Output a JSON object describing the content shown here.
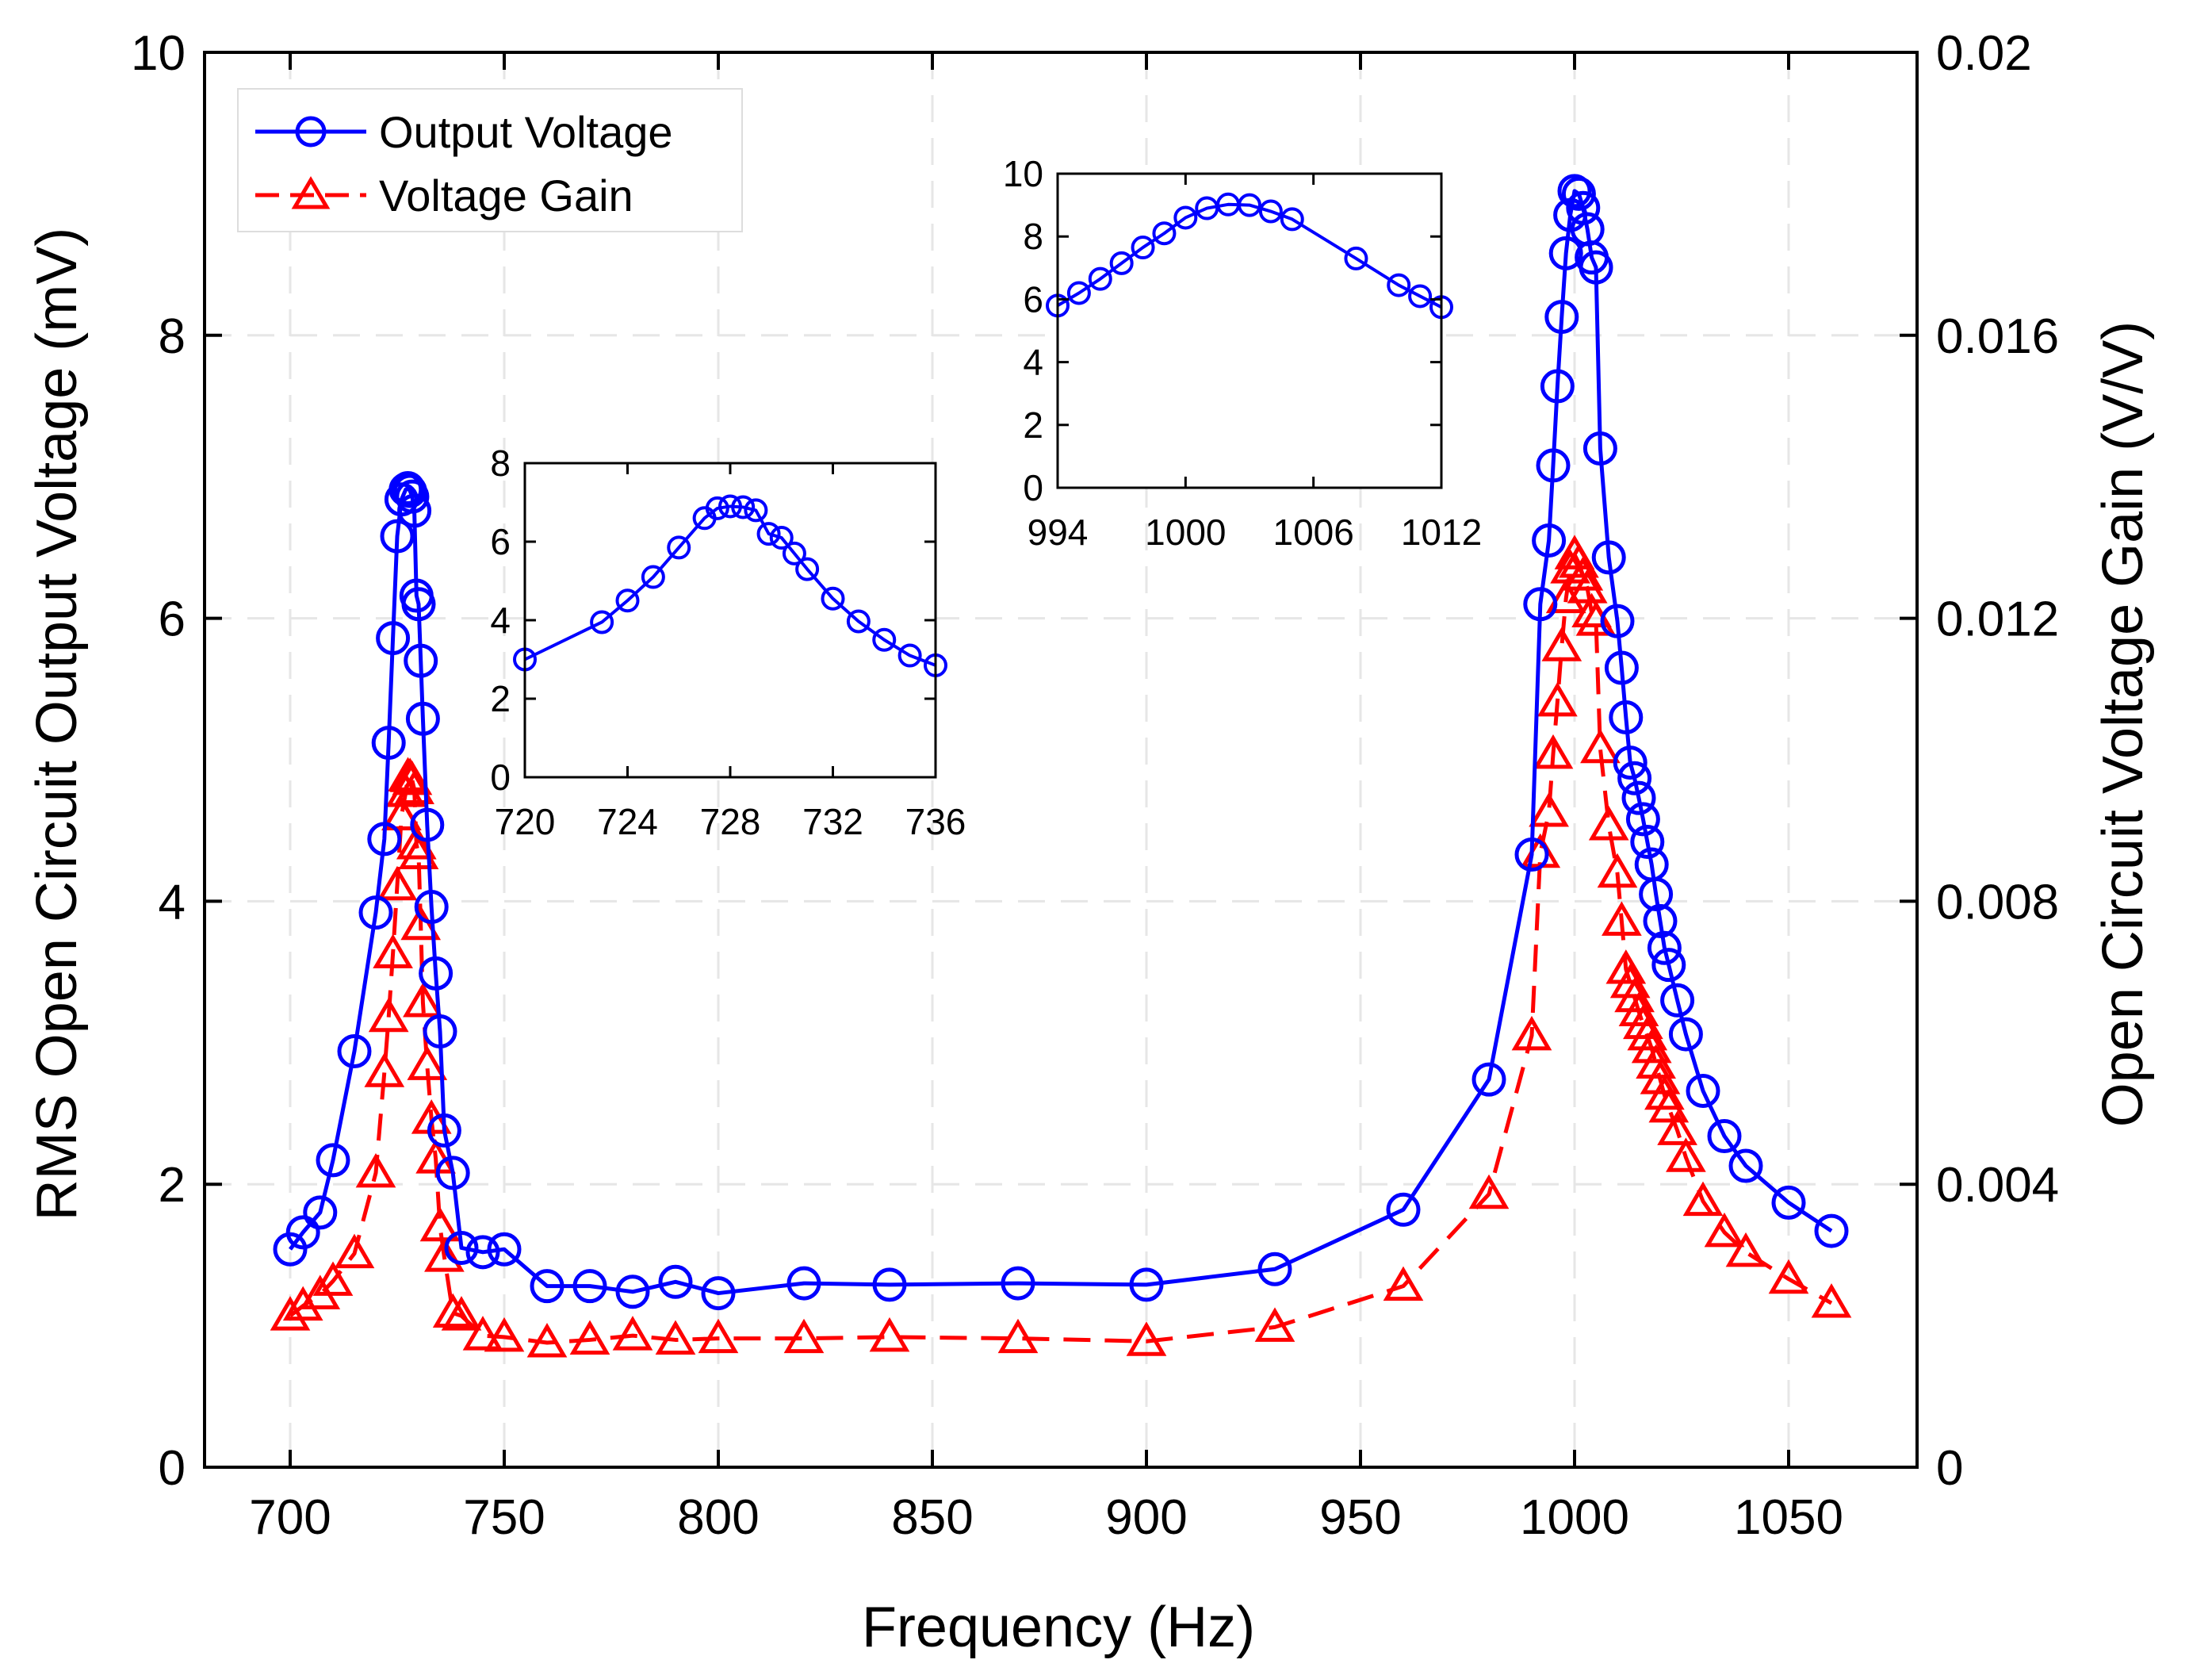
{
  "chart_data": [
    {
      "id": "main",
      "type": "line",
      "xlabel": "Frequency (Hz)",
      "ylabel": "RMS Open Circuit Output Voltage (mV)",
      "y2label": "Open Circuit Voltage Gain (V/V)",
      "xlim": [
        680,
        1080
      ],
      "ylim": [
        0,
        10
      ],
      "y2lim": [
        0,
        0.02
      ],
      "xticks": [
        700,
        750,
        800,
        850,
        900,
        950,
        1000,
        1050
      ],
      "xtick_labels": [
        "700",
        "750",
        "800",
        "850",
        "900",
        "950",
        "1000",
        "1050"
      ],
      "yticks": [
        0,
        2,
        4,
        6,
        8,
        10
      ],
      "ytick_labels": [
        "0",
        "2",
        "4",
        "6",
        "8",
        "10"
      ],
      "y2ticks": [
        0,
        0.004,
        0.008,
        0.012,
        0.016,
        0.02
      ],
      "y2tick_labels": [
        "0",
        "0.004",
        "0.008",
        "0.012",
        "0.016",
        "0.02"
      ],
      "grid": true,
      "legend": {
        "position": "top-left",
        "entries": [
          {
            "label": "Output Voltage",
            "color": "#0000ff",
            "marker": "circle",
            "line": "solid"
          },
          {
            "label": "Voltage Gain",
            "color": "#ff0000",
            "marker": "triangle",
            "line": "dashed"
          }
        ]
      },
      "series": [
        {
          "name": "Output Voltage",
          "axis": "left",
          "color": "#0000ff",
          "x": [
            700,
            703,
            707,
            710,
            715,
            720,
            722,
            723,
            724,
            725,
            726,
            727,
            727.5,
            728,
            728.5,
            729,
            729.5,
            730,
            730.5,
            731,
            732,
            733,
            734,
            735,
            736,
            738,
            740,
            745,
            750,
            760,
            770,
            780,
            790,
            800,
            820,
            840,
            870,
            900,
            930,
            960,
            980,
            990,
            992,
            994,
            995,
            996,
            997,
            998,
            999,
            1000,
            1001,
            1002,
            1003,
            1004,
            1005,
            1006,
            1008,
            1010,
            1011,
            1012,
            1013,
            1014,
            1015,
            1016,
            1017,
            1018,
            1019,
            1020,
            1021,
            1022,
            1024,
            1026,
            1030,
            1035,
            1040,
            1050,
            1060
          ],
          "values": [
            1.54,
            1.66,
            1.8,
            2.17,
            2.94,
            3.92,
            4.44,
            5.12,
            5.86,
            6.58,
            6.84,
            6.91,
            6.92,
            6.9,
            6.86,
            6.76,
            6.16,
            6.1,
            5.7,
            5.29,
            4.54,
            3.96,
            3.49,
            3.08,
            2.38,
            2.08,
            1.55,
            1.52,
            1.54,
            1.28,
            1.28,
            1.24,
            1.31,
            1.23,
            1.3,
            1.29,
            1.3,
            1.29,
            1.4,
            1.82,
            2.74,
            4.33,
            6.1,
            6.55,
            7.08,
            7.64,
            8.13,
            8.58,
            8.85,
            9.02,
            9.0,
            8.9,
            8.75,
            8.55,
            8.48,
            7.2,
            6.43,
            5.98,
            5.65,
            5.3,
            4.98,
            4.87,
            4.73,
            4.58,
            4.42,
            4.26,
            4.05,
            3.86,
            3.67,
            3.55,
            3.3,
            3.06,
            2.66,
            2.34,
            2.13,
            1.87,
            1.67
          ]
        },
        {
          "name": "Voltage Gain",
          "axis": "right",
          "color": "#ff0000",
          "x": [
            700,
            703,
            707,
            710,
            715,
            720,
            722,
            723,
            724,
            725,
            726,
            727,
            727.5,
            728,
            728.5,
            729,
            729.5,
            730,
            730.5,
            731,
            732,
            733,
            734,
            735,
            736,
            738,
            740,
            745,
            750,
            760,
            770,
            780,
            790,
            800,
            820,
            840,
            870,
            900,
            930,
            960,
            980,
            990,
            992,
            994,
            995,
            996,
            997,
            998,
            999,
            1000,
            1001,
            1002,
            1003,
            1004,
            1005,
            1006,
            1008,
            1010,
            1011,
            1012,
            1013,
            1014,
            1015,
            1016,
            1017,
            1018,
            1019,
            1020,
            1021,
            1022,
            1024,
            1026,
            1030,
            1035,
            1040,
            1050,
            1060
          ],
          "values": [
            0.00214,
            0.00228,
            0.00244,
            0.00263,
            0.00302,
            0.00416,
            0.00558,
            0.00636,
            0.00726,
            0.00822,
            0.00921,
            0.00954,
            0.00976,
            0.00975,
            0.00971,
            0.00958,
            0.0088,
            0.00866,
            0.00766,
            0.00657,
            0.00568,
            0.00492,
            0.00436,
            0.0034,
            0.00297,
            0.00218,
            0.00214,
            0.00186,
            0.00184,
            0.00176,
            0.0018,
            0.00186,
            0.0018,
            0.00182,
            0.00182,
            0.00184,
            0.00182,
            0.00178,
            0.00198,
            0.00256,
            0.00386,
            0.0061,
            0.00868,
            0.00926,
            0.01008,
            0.01082,
            0.0116,
            0.01228,
            0.0127,
            0.0129,
            0.01278,
            0.0126,
            0.01242,
            0.01208,
            0.01196,
            0.01016,
            0.00907,
            0.0084,
            0.00772,
            0.00704,
            0.00684,
            0.00664,
            0.00644,
            0.00626,
            0.0061,
            0.00592,
            0.0057,
            0.00548,
            0.00526,
            0.00508,
            0.00476,
            0.00438,
            0.00376,
            0.00332,
            0.00304,
            0.00266,
            0.00232
          ]
        }
      ]
    },
    {
      "id": "inset1",
      "type": "line",
      "xlim": [
        720,
        736
      ],
      "ylim": [
        0,
        8
      ],
      "xticks": [
        720,
        724,
        728,
        732,
        736
      ],
      "xtick_labels": [
        "720",
        "724",
        "728",
        "732",
        "736"
      ],
      "yticks": [
        0,
        2,
        4,
        6,
        8
      ],
      "ytick_labels": [
        "0",
        "2",
        "4",
        "6",
        "8"
      ],
      "series": [
        {
          "name": "Output Voltage",
          "color": "#0000ff",
          "x": [
            720,
            723,
            724,
            725,
            726,
            727,
            727.5,
            728,
            728.5,
            729,
            729.5,
            730,
            730.5,
            731,
            732,
            733,
            734,
            735,
            736
          ],
          "values": [
            3.0,
            3.95,
            4.5,
            5.1,
            5.85,
            6.6,
            6.85,
            6.9,
            6.88,
            6.8,
            6.2,
            6.1,
            5.7,
            5.3,
            4.55,
            3.97,
            3.5,
            3.1,
            2.85
          ]
        }
      ]
    },
    {
      "id": "inset2",
      "type": "line",
      "xlim": [
        994,
        1012
      ],
      "ylim": [
        0,
        10
      ],
      "xticks": [
        994,
        1000,
        1006,
        1012
      ],
      "xtick_labels": [
        "994",
        "1000",
        "1006",
        "1012"
      ],
      "yticks": [
        0,
        2,
        4,
        6,
        8,
        10
      ],
      "ytick_labels": [
        "0",
        "2",
        "4",
        "6",
        "8",
        "10"
      ],
      "series": [
        {
          "name": "Output Voltage",
          "color": "#0000ff",
          "x": [
            994,
            995,
            996,
            997,
            998,
            999,
            1000,
            1001,
            1002,
            1003,
            1004,
            1005,
            1008,
            1010,
            1011,
            1012
          ],
          "values": [
            5.8,
            6.2,
            6.65,
            7.15,
            7.65,
            8.1,
            8.6,
            8.9,
            9.02,
            9.0,
            8.8,
            8.55,
            7.3,
            6.45,
            6.1,
            5.75
          ]
        }
      ]
    }
  ]
}
